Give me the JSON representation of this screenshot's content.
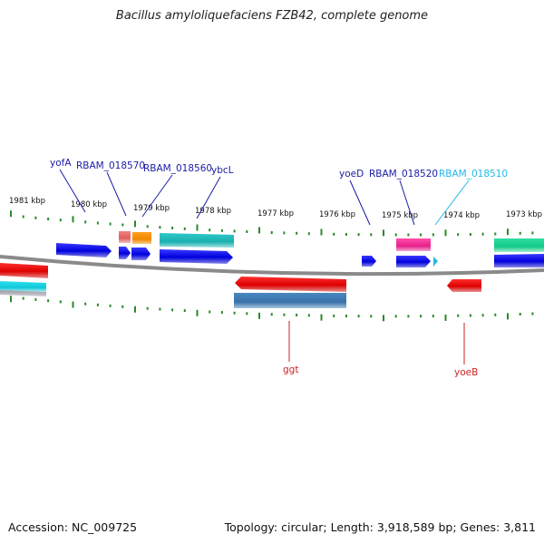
{
  "title": "Bacillus amyloliquefaciens FZB42, complete genome",
  "footer": {
    "accession": "Accession: NC_009725",
    "topology": "Topology: circular; Length: 3,918,589 bp; Genes: 3,811"
  },
  "colors": {
    "tick": "#2a8a2a",
    "backbone": "#8a8a8a",
    "label_blue": "#1a1aa8",
    "label_cyan": "#22b8e6",
    "label_red": "#cc2222"
  },
  "scale_labels": [
    {
      "label": "1981 kbp"
    },
    {
      "label": "1980 kbp"
    },
    {
      "label": "1979 kbp"
    },
    {
      "label": "1978 kbp"
    },
    {
      "label": "1977 kbp"
    },
    {
      "label": "1976 kbp"
    },
    {
      "label": "1975 kbp"
    },
    {
      "label": "1974 kbp"
    },
    {
      "label": "1973 kbp"
    }
  ],
  "gene_labels": [
    {
      "name": "yofA"
    },
    {
      "name": "RBAM_018570"
    },
    {
      "name": "RBAM_018560"
    },
    {
      "name": "ybcL"
    },
    {
      "name": "yoeD"
    },
    {
      "name": "RBAM_018520"
    },
    {
      "name": "RBAM_018510"
    },
    {
      "name": "ggt"
    },
    {
      "name": "yoeB"
    }
  ]
}
